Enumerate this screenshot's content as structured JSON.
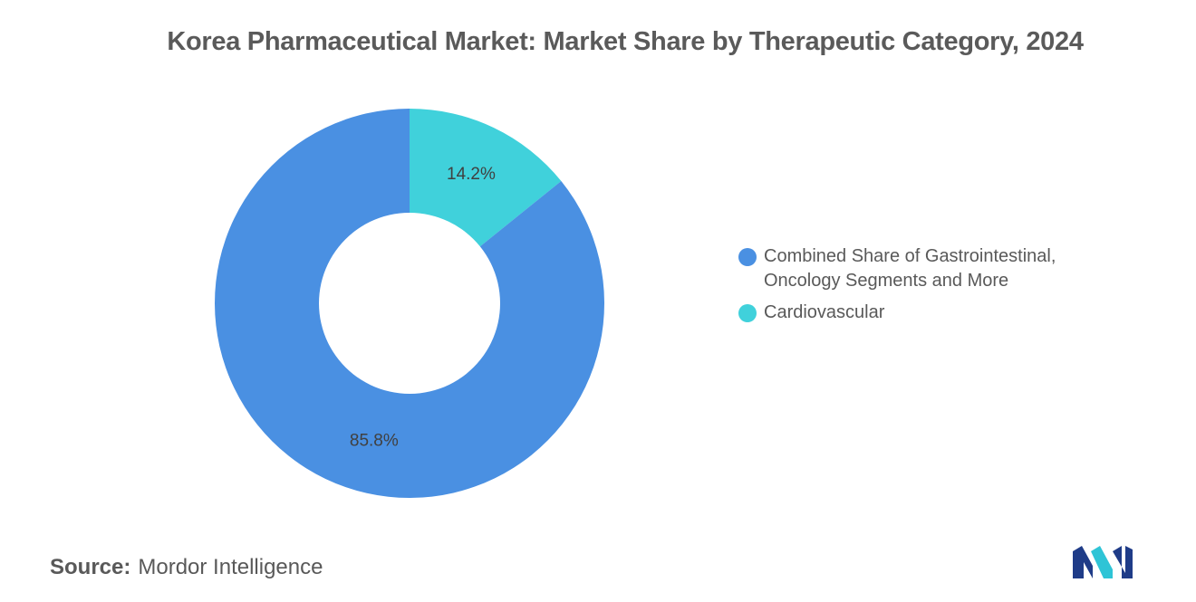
{
  "chart_data": {
    "type": "pie",
    "title": "Korea Pharmaceutical Market: Market Share by Therapeutic Category, 2024",
    "donut": true,
    "slices": [
      {
        "label_lines": [
          "Combined Share of Gastrointestinal,",
          "Oncology Segments and More"
        ],
        "value": 85.8,
        "display": "85.8%",
        "color": "#4a90e2"
      },
      {
        "label_lines": [
          "Cardiovascular"
        ],
        "value": 14.2,
        "display": "14.2%",
        "color": "#40d1db"
      }
    ],
    "legend_position": "right"
  },
  "footer": {
    "source_label": "Source:",
    "source_value": "Mordor Intelligence"
  },
  "logo": {
    "icon": "mordor-intelligence-logo-icon",
    "colors": [
      "#1f3c88",
      "#2ec4d6"
    ]
  }
}
